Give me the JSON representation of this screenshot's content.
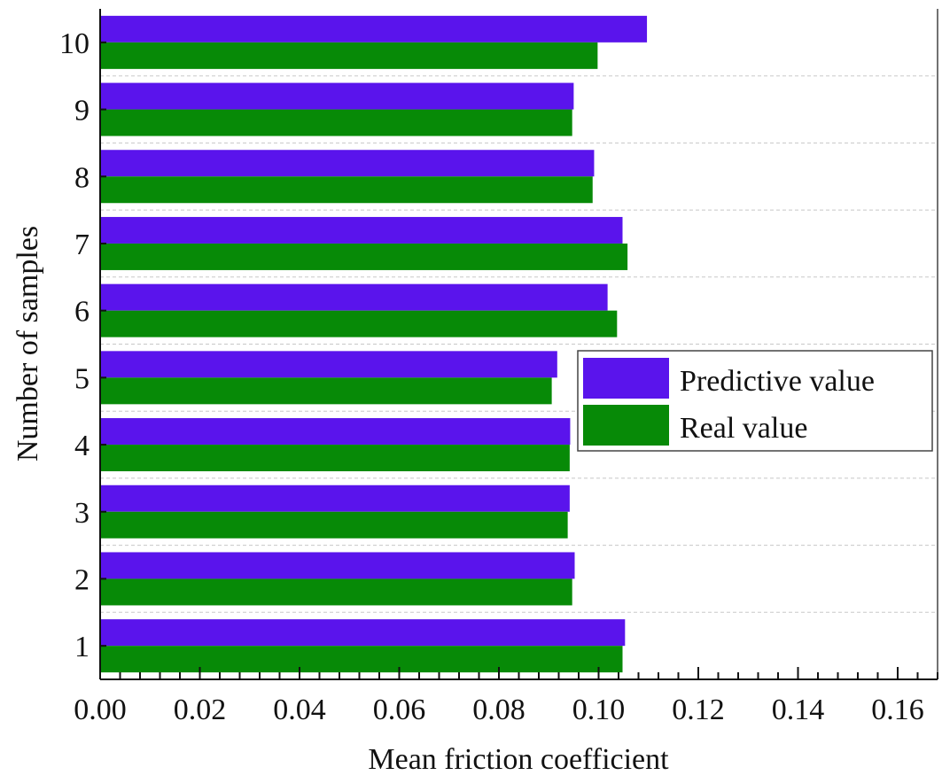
{
  "chart_data": {
    "type": "bar",
    "orientation": "horizontal",
    "categories": [
      "1",
      "2",
      "3",
      "4",
      "5",
      "6",
      "7",
      "8",
      "9",
      "10"
    ],
    "series": [
      {
        "name": "Predictive value",
        "color": "#5a14ec",
        "values": [
          0.1053,
          0.0952,
          0.0942,
          0.0943,
          0.0917,
          0.1018,
          0.1048,
          0.0991,
          0.095,
          0.1097
        ]
      },
      {
        "name": "Real value",
        "color": "#078a07",
        "values": [
          0.1048,
          0.0947,
          0.0938,
          0.0942,
          0.0906,
          0.1037,
          0.1058,
          0.0988,
          0.0947,
          0.0998
        ]
      }
    ],
    "xlabel": "Mean friction coefficient",
    "ylabel": "Number of samples",
    "xlim": [
      0,
      0.168
    ],
    "xticks": [
      "0.00",
      "0.02",
      "0.04",
      "0.06",
      "0.08",
      "0.10",
      "0.12",
      "0.14",
      "0.16"
    ],
    "grid": "horizontal dashed between categories",
    "legend": "center-right"
  }
}
